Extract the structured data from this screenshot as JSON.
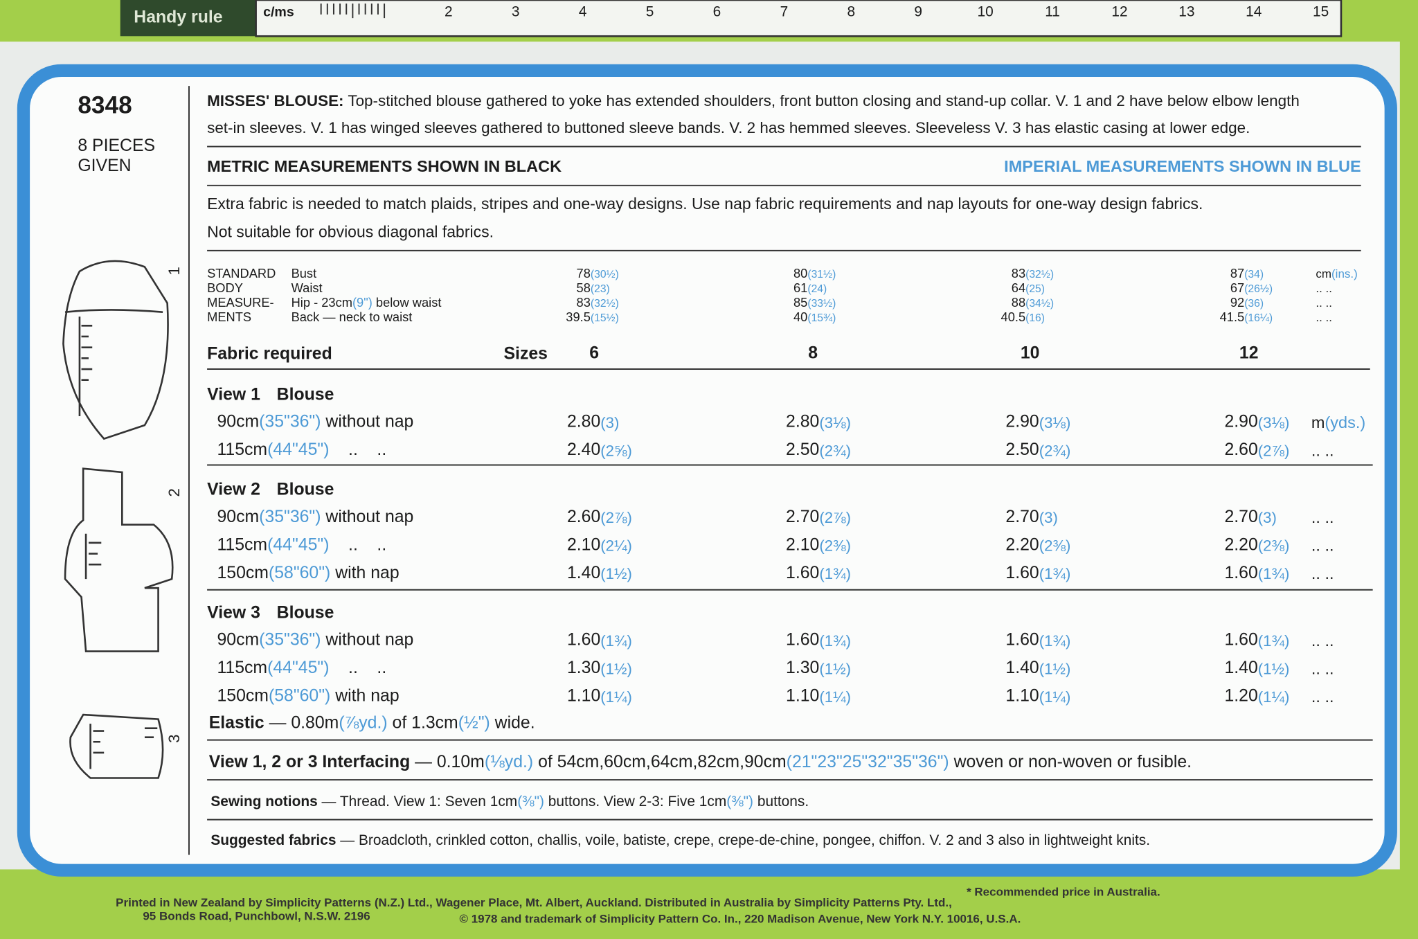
{
  "ruler": {
    "title": "Handy rule",
    "unit": "c/ms",
    "numbers": [
      "2",
      "3",
      "4",
      "5",
      "6",
      "7",
      "8",
      "9",
      "10",
      "11",
      "12",
      "13",
      "14",
      "15"
    ]
  },
  "pattern": {
    "number": "8348",
    "pieces": [
      "8 PIECES",
      "GIVEN"
    ],
    "views": [
      "1",
      "2",
      "3"
    ]
  },
  "description": [
    [
      {
        "text": "MISSES' BLOUSE:",
        "style": "bold"
      },
      {
        "text": " Top-stitched blouse gathered to yoke has extended shoulders, front button closing and stand-up collar. V. 1 and 2 have below elbow length"
      }
    ],
    [
      {
        "text": "set-in sleeves. V. 1 has winged sleeves gathered to buttoned sleeve bands. V. 2 has hemmed sleeves. Sleeveless V. 3 has elastic casing at lower edge."
      }
    ]
  ],
  "metric_heading": "METRIC MEASUREMENTS SHOWN IN BLACK",
  "imperial_heading": "IMPERIAL MEASUREMENTS SHOWN IN BLUE",
  "notes": [
    "Extra fabric is needed to match plaids, stripes and one-way designs. Use nap fabric requirements and nap layouts for one-way design fabrics.",
    "Not suitable for obvious diagonal fabrics."
  ],
  "body_measurements": {
    "label": [
      "STANDARD",
      "BODY",
      "MEASURE-",
      "MENTS"
    ],
    "rows": [
      {
        "name": [
          {
            "text": "Bust"
          }
        ],
        "values": [
          [
            "78",
            "(30½)"
          ],
          [
            "80",
            "(31½)"
          ],
          [
            "83",
            "(32½)"
          ],
          [
            "87",
            "(34)"
          ]
        ],
        "unit": [
          {
            "text": "cm"
          },
          {
            "text": "(ins.)",
            "style": "blue"
          }
        ]
      },
      {
        "name": [
          {
            "text": "Waist"
          }
        ],
        "values": [
          [
            "58",
            "(23)"
          ],
          [
            "61",
            "(24)"
          ],
          [
            "64",
            "(25)"
          ],
          [
            "67",
            "(26½)"
          ]
        ],
        "unit": [
          {
            "text": ".. .."
          }
        ]
      },
      {
        "name": [
          {
            "text": "Hip - 23cm"
          },
          {
            "text": "(9\")",
            "style": "blue"
          },
          {
            "text": " below waist"
          }
        ],
        "values": [
          [
            "83",
            "(32½)"
          ],
          [
            "85",
            "(33½)"
          ],
          [
            "88",
            "(34½)"
          ],
          [
            "92",
            "(36)"
          ]
        ],
        "unit": [
          {
            "text": ".. .."
          }
        ]
      },
      {
        "name": [
          {
            "text": "Back — neck to waist"
          }
        ],
        "values": [
          [
            "39.5",
            "(15½)"
          ],
          [
            "40",
            "(15¾)"
          ],
          [
            "40.5",
            "(16)"
          ],
          [
            "41.5",
            "(16¼)"
          ]
        ],
        "unit": [
          {
            "text": ".. .."
          }
        ]
      }
    ]
  },
  "fabric": {
    "heading": "Fabric required",
    "sizes_label": "Sizes",
    "sizes": [
      "6",
      "8",
      "10",
      "12"
    ],
    "views": [
      {
        "title": "View 1",
        "garment": "Blouse",
        "rows": [
          {
            "label": [
              {
                "text": "90cm"
              },
              {
                "text": "(35\"36\")",
                "style": "blue"
              },
              {
                "text": " without nap"
              }
            ],
            "values": [
              [
                "2.80",
                "(3)"
              ],
              [
                "2.80",
                "(3⅛)"
              ],
              [
                "2.90",
                "(3⅛)"
              ],
              [
                "2.90",
                "(3⅛)"
              ]
            ],
            "unit": [
              {
                "text": "m"
              },
              {
                "text": "(yds.)",
                "style": "blue"
              }
            ]
          },
          {
            "label": [
              {
                "text": "115cm"
              },
              {
                "text": "(44\"45\")",
                "style": "blue"
              },
              {
                "text": "    ..    .."
              }
            ],
            "values": [
              [
                "2.40",
                "(2⅝)"
              ],
              [
                "2.50",
                "(2¾)"
              ],
              [
                "2.50",
                "(2¾)"
              ],
              [
                "2.60",
                "(2⅞)"
              ]
            ],
            "unit": [
              {
                "text": ".. .."
              }
            ]
          }
        ]
      },
      {
        "title": "View 2",
        "garment": "Blouse",
        "rows": [
          {
            "label": [
              {
                "text": "90cm"
              },
              {
                "text": "(35\"36\")",
                "style": "blue"
              },
              {
                "text": " without nap"
              }
            ],
            "values": [
              [
                "2.60",
                "(2⅞)"
              ],
              [
                "2.70",
                "(2⅞)"
              ],
              [
                "2.70",
                "(3)"
              ],
              [
                "2.70",
                "(3)"
              ]
            ],
            "unit": [
              {
                "text": ".. .."
              }
            ]
          },
          {
            "label": [
              {
                "text": "115cm"
              },
              {
                "text": "(44\"45\")",
                "style": "blue"
              },
              {
                "text": "    ..    .."
              }
            ],
            "values": [
              [
                "2.10",
                "(2¼)"
              ],
              [
                "2.10",
                "(2⅜)"
              ],
              [
                "2.20",
                "(2⅜)"
              ],
              [
                "2.20",
                "(2⅜)"
              ]
            ],
            "unit": [
              {
                "text": ".. .."
              }
            ]
          },
          {
            "label": [
              {
                "text": "150cm"
              },
              {
                "text": "(58\"60\")",
                "style": "blue"
              },
              {
                "text": " with nap"
              }
            ],
            "values": [
              [
                "1.40",
                "(1½)"
              ],
              [
                "1.60",
                "(1¾)"
              ],
              [
                "1.60",
                "(1¾)"
              ],
              [
                "1.60",
                "(1¾)"
              ]
            ],
            "unit": [
              {
                "text": ".. .."
              }
            ]
          }
        ]
      },
      {
        "title": "View 3",
        "garment": "Blouse",
        "rows": [
          {
            "label": [
              {
                "text": "90cm"
              },
              {
                "text": "(35\"36\")",
                "style": "blue"
              },
              {
                "text": " without nap"
              }
            ],
            "values": [
              [
                "1.60",
                "(1¾)"
              ],
              [
                "1.60",
                "(1¾)"
              ],
              [
                "1.60",
                "(1¾)"
              ],
              [
                "1.60",
                "(1¾)"
              ]
            ],
            "unit": [
              {
                "text": ".. .."
              }
            ]
          },
          {
            "label": [
              {
                "text": "115cm"
              },
              {
                "text": "(44\"45\")",
                "style": "blue"
              },
              {
                "text": "    ..    .."
              }
            ],
            "values": [
              [
                "1.30",
                "(1½)"
              ],
              [
                "1.30",
                "(1½)"
              ],
              [
                "1.40",
                "(1½)"
              ],
              [
                "1.40",
                "(1½)"
              ]
            ],
            "unit": [
              {
                "text": ".. .."
              }
            ]
          },
          {
            "label": [
              {
                "text": "150cm"
              },
              {
                "text": "(58\"60\")",
                "style": "blue"
              },
              {
                "text": " with nap"
              }
            ],
            "values": [
              [
                "1.10",
                "(1¼)"
              ],
              [
                "1.10",
                "(1¼)"
              ],
              [
                "1.10",
                "(1¼)"
              ],
              [
                "1.20",
                "(1¼)"
              ]
            ],
            "unit": [
              {
                "text": ".. .."
              }
            ]
          }
        ]
      }
    ]
  },
  "elastic": [
    {
      "text": "Elastic",
      "style": "bold"
    },
    {
      "text": " — 0.80m"
    },
    {
      "text": "(⅞yd.)",
      "style": "blue"
    },
    {
      "text": " of 1.3cm"
    },
    {
      "text": "(½\")",
      "style": "blue"
    },
    {
      "text": " wide."
    }
  ],
  "interfacing": [
    {
      "text": "View 1, 2 or 3 Interfacing",
      "style": "bold"
    },
    {
      "text": " — 0.10m"
    },
    {
      "text": "(⅛yd.)",
      "style": "blue"
    },
    {
      "text": " of 54cm,60cm,64cm,82cm,90cm"
    },
    {
      "text": "(21\"23\"25\"32\"35\"36\")",
      "style": "blue"
    },
    {
      "text": " woven or non-woven or fusible."
    }
  ],
  "notions": [
    {
      "text": "Sewing notions",
      "style": "bold"
    },
    {
      "text": " — Thread. View 1: Seven 1cm"
    },
    {
      "text": "(⅜\")",
      "style": "blue"
    },
    {
      "text": " buttons. View 2-3: Five 1cm"
    },
    {
      "text": "(⅜\")",
      "style": "blue"
    },
    {
      "text": " buttons."
    }
  ],
  "suggested": [
    {
      "text": "Suggested fabrics",
      "style": "bold"
    },
    {
      "text": " — Broadcloth, crinkled cotton, challis, voile, batiste, crepe, crepe-de-chine, pongee, chiffon. V. 2 and 3 also in lightweight knits."
    }
  ],
  "footer": {
    "price_note": "* Recommended price in Australia.",
    "printed": "Printed in New Zealand by Simplicity Patterns (N.Z.) Ltd., Wagener Place, Mt. Albert, Auckland. Distributed in Australia by Simplicity Patterns Pty. Ltd.,",
    "address": "95 Bonds Road, Punchbowl, N.S.W. 2196",
    "copyright": "© 1978 and trademark of Simplicity Pattern Co. In., 220 Madison Avenue, New York N.Y. 10016, U.S.A."
  }
}
